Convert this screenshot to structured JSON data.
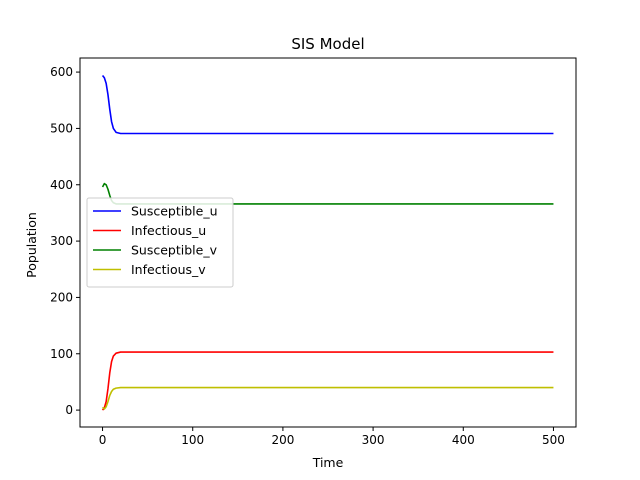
{
  "chart_data": {
    "type": "line",
    "title": "SIS Model",
    "xlabel": "Time",
    "ylabel": "Population",
    "xlim": [
      -25,
      525
    ],
    "ylim": [
      -30,
      625
    ],
    "xticks": [
      0,
      100,
      200,
      300,
      400,
      500
    ],
    "yticks": [
      0,
      100,
      200,
      300,
      400,
      500,
      600
    ],
    "grid": false,
    "legend_position": "center-left",
    "series": [
      {
        "name": "Susceptible_u",
        "color": "#0000ff",
        "points": [
          [
            0,
            594
          ],
          [
            2,
            590
          ],
          [
            4,
            580
          ],
          [
            6,
            560
          ],
          [
            8,
            534
          ],
          [
            10,
            512
          ],
          [
            12,
            500
          ],
          [
            15,
            493
          ],
          [
            20,
            491
          ],
          [
            30,
            491
          ],
          [
            100,
            491
          ],
          [
            300,
            491
          ],
          [
            500,
            491
          ]
        ]
      },
      {
        "name": "Infectious_u",
        "color": "#ff0000",
        "points": [
          [
            0,
            0
          ],
          [
            2,
            4
          ],
          [
            4,
            15
          ],
          [
            6,
            38
          ],
          [
            8,
            66
          ],
          [
            10,
            86
          ],
          [
            12,
            96
          ],
          [
            15,
            101
          ],
          [
            20,
            103
          ],
          [
            30,
            103
          ],
          [
            100,
            103
          ],
          [
            300,
            103
          ],
          [
            500,
            103
          ]
        ]
      },
      {
        "name": "Susceptible_v",
        "color": "#008000",
        "points": [
          [
            0,
            396
          ],
          [
            2,
            402
          ],
          [
            4,
            400
          ],
          [
            6,
            392
          ],
          [
            8,
            381
          ],
          [
            10,
            372
          ],
          [
            12,
            368
          ],
          [
            15,
            366
          ],
          [
            20,
            366
          ],
          [
            30,
            366
          ],
          [
            100,
            366
          ],
          [
            300,
            366
          ],
          [
            500,
            366
          ]
        ]
      },
      {
        "name": "Infectious_v",
        "color": "#bfbf00",
        "points": [
          [
            0,
            5
          ],
          [
            2,
            2
          ],
          [
            4,
            6
          ],
          [
            6,
            15
          ],
          [
            8,
            26
          ],
          [
            10,
            33
          ],
          [
            12,
            37
          ],
          [
            15,
            39
          ],
          [
            20,
            40
          ],
          [
            30,
            40
          ],
          [
            100,
            40
          ],
          [
            300,
            40
          ],
          [
            500,
            40
          ]
        ]
      }
    ]
  }
}
